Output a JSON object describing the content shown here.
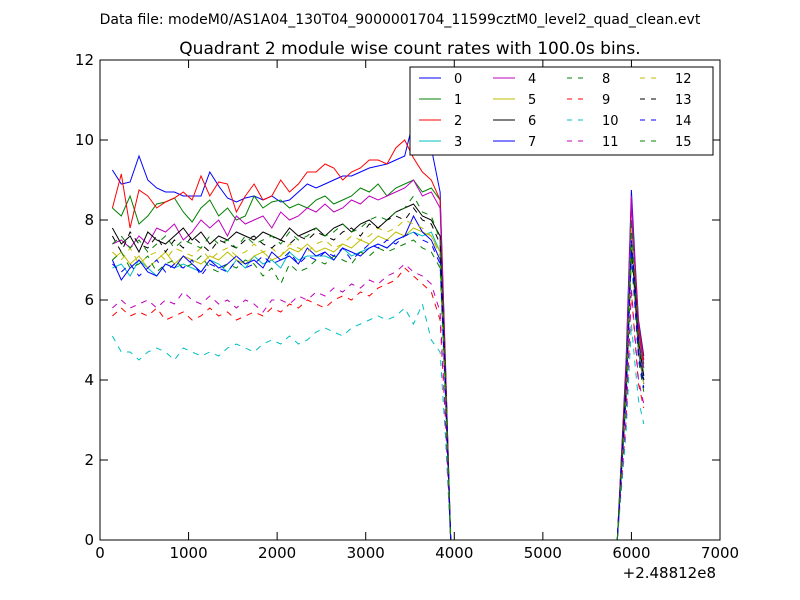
{
  "header": {
    "file_line": "Data file: modeM0/AS1A04_130T04_9000001704_11599cztM0_level2_quad_clean.evt"
  },
  "chart_data": {
    "type": "line",
    "title": "Quadrant 2 module wise count rates with 100.0s bins.",
    "x_offset_label": "+2.48812e8",
    "xlim": [
      0,
      7000
    ],
    "ylim": [
      0,
      12
    ],
    "x_ticks": [
      0,
      1000,
      2000,
      3000,
      4000,
      5000,
      6000,
      7000
    ],
    "y_ticks": [
      0,
      2,
      4,
      6,
      8,
      10,
      12
    ],
    "x_tick_labels": [
      "0",
      "1000",
      "2000",
      "3000",
      "4000",
      "5000",
      "6000",
      "7000"
    ],
    "y_tick_labels": [
      "0",
      "2",
      "4",
      "6",
      "8",
      "10",
      "12"
    ],
    "grid": false,
    "legend_placement": "top-right",
    "legend_columns": 4,
    "x": [
      140,
      240,
      340,
      440,
      540,
      640,
      740,
      840,
      940,
      1040,
      1140,
      1240,
      1340,
      1440,
      1540,
      1640,
      1740,
      1840,
      1940,
      2040,
      2140,
      2240,
      2340,
      2440,
      2540,
      2640,
      2740,
      2840,
      2940,
      3040,
      3140,
      3240,
      3340,
      3440,
      3540,
      3640,
      3740,
      3840,
      3900,
      3960,
      4040,
      4500,
      5000,
      5500,
      5840,
      5940,
      6000,
      6040,
      6080,
      6140
    ],
    "series": [
      {
        "name": "0",
        "color": "#0000ff",
        "dash": false,
        "values": [
          9.25,
          8.9,
          8.95,
          9.6,
          9.0,
          8.8,
          8.7,
          8.7,
          8.6,
          8.6,
          8.6,
          9.2,
          8.85,
          8.55,
          8.45,
          8.55,
          8.6,
          8.5,
          8.6,
          8.45,
          8.5,
          8.7,
          8.9,
          8.8,
          8.9,
          9.0,
          9.1,
          9.1,
          9.2,
          9.3,
          9.35,
          9.4,
          9.5,
          9.6,
          10.5,
          10.0,
          9.8,
          8.7,
          4.5,
          0.0,
          0.0,
          0.0,
          0.0,
          0.0,
          0.0,
          4.5,
          8.75,
          7.0,
          5.5,
          4.6
        ]
      },
      {
        "name": "1",
        "color": "#008000",
        "dash": false,
        "values": [
          8.3,
          8.1,
          8.6,
          7.9,
          8.1,
          8.4,
          8.45,
          8.55,
          8.2,
          7.95,
          8.3,
          8.5,
          8.1,
          8.3,
          8.0,
          8.1,
          8.6,
          8.3,
          8.45,
          8.5,
          8.3,
          8.4,
          8.3,
          8.5,
          8.6,
          8.4,
          8.5,
          8.6,
          8.8,
          8.7,
          8.9,
          8.6,
          8.8,
          8.9,
          9.0,
          8.7,
          8.8,
          8.5,
          4.3,
          0.0,
          0.0,
          0.0,
          0.0,
          0.0,
          0.0,
          4.2,
          8.0,
          6.8,
          5.3,
          4.4
        ]
      },
      {
        "name": "2",
        "color": "#ff0000",
        "dash": false,
        "values": [
          8.3,
          9.15,
          7.8,
          8.75,
          8.6,
          8.3,
          8.45,
          8.55,
          8.7,
          8.5,
          9.1,
          8.6,
          8.95,
          8.9,
          8.2,
          8.6,
          8.9,
          8.5,
          8.6,
          9.0,
          8.7,
          8.9,
          9.2,
          9.2,
          9.4,
          9.3,
          9.0,
          9.2,
          9.3,
          9.5,
          9.5,
          9.4,
          9.8,
          10.0,
          9.55,
          9.2,
          9.0,
          8.5,
          4.4,
          0.0,
          0.0,
          0.0,
          0.0,
          0.0,
          0.0,
          4.3,
          8.4,
          6.9,
          5.4,
          4.5
        ]
      },
      {
        "name": "3",
        "color": "#00bfbf",
        "dash": false,
        "values": [
          6.8,
          6.9,
          6.6,
          7.0,
          6.8,
          6.6,
          6.9,
          6.8,
          6.9,
          6.8,
          6.7,
          7.0,
          6.9,
          6.7,
          7.0,
          6.8,
          7.1,
          6.9,
          7.0,
          6.8,
          7.2,
          7.0,
          7.1,
          7.1,
          7.1,
          7.0,
          7.3,
          7.1,
          7.2,
          7.3,
          7.4,
          7.3,
          7.5,
          7.6,
          7.7,
          7.6,
          7.7,
          7.2,
          3.9,
          0.0,
          0.0,
          0.0,
          0.0,
          0.0,
          0.0,
          3.8,
          7.7,
          6.2,
          4.8,
          4.0
        ]
      },
      {
        "name": "4",
        "color": "#bf00bf",
        "dash": false,
        "values": [
          7.4,
          7.5,
          7.3,
          7.6,
          7.4,
          7.8,
          7.7,
          7.9,
          7.5,
          7.7,
          8.0,
          7.8,
          8.0,
          7.6,
          8.1,
          7.9,
          8.0,
          8.1,
          7.8,
          8.2,
          8.0,
          8.1,
          8.3,
          8.2,
          8.4,
          8.2,
          8.3,
          8.5,
          8.4,
          8.6,
          8.5,
          8.6,
          8.7,
          8.8,
          9.0,
          8.6,
          8.7,
          8.3,
          4.2,
          0.0,
          0.0,
          0.0,
          0.0,
          0.0,
          0.0,
          4.1,
          8.6,
          6.7,
          5.2,
          4.3
        ]
      },
      {
        "name": "5",
        "color": "#bfbf00",
        "dash": false,
        "values": [
          7.0,
          7.2,
          6.9,
          7.1,
          6.8,
          7.0,
          7.2,
          6.9,
          7.1,
          7.0,
          6.9,
          7.1,
          7.0,
          7.2,
          7.0,
          6.9,
          7.1,
          7.2,
          7.0,
          7.1,
          7.3,
          7.2,
          7.4,
          7.2,
          7.3,
          7.2,
          7.4,
          7.3,
          7.5,
          7.4,
          7.6,
          7.5,
          7.7,
          7.6,
          7.8,
          7.7,
          7.6,
          7.2,
          3.9,
          0.0,
          0.0,
          0.0,
          0.0,
          0.0,
          0.0,
          3.8,
          7.8,
          6.3,
          4.9,
          4.0
        ]
      },
      {
        "name": "6",
        "color": "#000000",
        "dash": false,
        "values": [
          7.8,
          7.4,
          7.6,
          7.2,
          7.7,
          7.5,
          7.4,
          7.6,
          7.8,
          7.5,
          7.7,
          7.4,
          7.6,
          7.5,
          7.7,
          7.6,
          7.5,
          7.7,
          7.6,
          7.5,
          7.8,
          7.6,
          7.7,
          7.8,
          7.6,
          7.8,
          7.9,
          7.7,
          7.9,
          8.0,
          7.8,
          8.0,
          8.2,
          8.3,
          8.4,
          8.1,
          8.0,
          7.6,
          4.0,
          0.0,
          0.0,
          0.0,
          0.0,
          0.0,
          0.0,
          3.9,
          7.4,
          6.4,
          5.0,
          4.1
        ]
      },
      {
        "name": "7",
        "color": "#0000ff",
        "dash": false,
        "values": [
          7.0,
          6.5,
          6.8,
          7.0,
          6.7,
          6.6,
          6.9,
          6.8,
          7.1,
          6.9,
          6.7,
          7.0,
          6.8,
          6.9,
          7.1,
          6.9,
          7.0,
          6.8,
          7.2,
          7.0,
          7.1,
          6.9,
          7.3,
          7.1,
          7.2,
          7.0,
          7.3,
          7.2,
          7.1,
          7.3,
          7.4,
          7.3,
          7.5,
          7.6,
          8.1,
          7.7,
          7.5,
          7.0,
          3.8,
          0.0,
          0.0,
          0.0,
          0.0,
          0.0,
          0.0,
          3.7,
          7.6,
          6.0,
          4.7,
          3.9
        ]
      },
      {
        "name": "8",
        "color": "#008000",
        "dash": true,
        "values": [
          7.0,
          7.2,
          6.8,
          6.9,
          7.1,
          6.7,
          6.9,
          7.0,
          6.8,
          6.9,
          7.1,
          6.8,
          6.7,
          6.9,
          6.8,
          7.0,
          6.9,
          6.6,
          6.8,
          6.4,
          6.9,
          6.7,
          6.8,
          7.0,
          6.9,
          7.1,
          7.0,
          6.9,
          7.2,
          7.1,
          7.3,
          7.2,
          7.3,
          7.4,
          7.5,
          7.3,
          7.2,
          6.8,
          3.6,
          0.0,
          0.0,
          0.0,
          0.0,
          0.0,
          0.0,
          3.5,
          7.0,
          5.8,
          4.5,
          3.7
        ]
      },
      {
        "name": "9",
        "color": "#ff0000",
        "dash": true,
        "values": [
          5.6,
          5.8,
          5.6,
          5.7,
          5.6,
          5.8,
          5.5,
          5.6,
          5.7,
          5.5,
          5.6,
          5.8,
          5.6,
          5.7,
          5.5,
          5.6,
          5.7,
          5.6,
          5.8,
          5.7,
          5.9,
          5.8,
          6.0,
          5.9,
          5.8,
          6.0,
          6.1,
          6.0,
          6.2,
          6.1,
          6.3,
          6.4,
          6.5,
          6.8,
          6.6,
          6.4,
          6.2,
          5.5,
          3.0,
          0.0,
          0.0,
          0.0,
          0.0,
          0.0,
          0.0,
          3.0,
          6.2,
          5.0,
          3.9,
          3.3
        ]
      },
      {
        "name": "10",
        "color": "#00bfbf",
        "dash": true,
        "values": [
          5.1,
          4.7,
          4.7,
          4.5,
          4.7,
          4.8,
          4.7,
          4.5,
          4.8,
          4.7,
          4.6,
          4.7,
          4.6,
          4.8,
          4.9,
          4.8,
          4.7,
          4.9,
          5.0,
          4.9,
          5.1,
          4.9,
          5.0,
          5.2,
          5.3,
          5.2,
          5.1,
          5.3,
          5.4,
          5.5,
          5.6,
          5.5,
          5.6,
          5.8,
          5.4,
          5.9,
          5.0,
          4.7,
          2.6,
          0.0,
          0.0,
          0.0,
          0.0,
          0.0,
          0.0,
          2.7,
          5.4,
          4.4,
          3.5,
          2.9
        ]
      },
      {
        "name": "11",
        "color": "#bf00bf",
        "dash": true,
        "values": [
          5.8,
          6.0,
          5.8,
          5.9,
          6.0,
          5.8,
          6.0,
          5.9,
          6.2,
          6.0,
          5.9,
          6.1,
          5.9,
          6.0,
          5.8,
          6.0,
          5.9,
          5.7,
          6.0,
          6.0,
          5.9,
          6.1,
          6.0,
          6.2,
          6.1,
          6.3,
          6.2,
          6.4,
          6.3,
          6.5,
          6.4,
          6.6,
          6.7,
          6.9,
          6.7,
          6.6,
          6.4,
          5.7,
          3.1,
          0.0,
          0.0,
          0.0,
          0.0,
          0.0,
          0.0,
          3.1,
          6.3,
          5.1,
          4.0,
          3.4
        ]
      },
      {
        "name": "12",
        "color": "#bfbf00",
        "dash": true,
        "values": [
          7.2,
          7.0,
          7.3,
          6.9,
          7.1,
          7.2,
          7.0,
          7.3,
          7.2,
          7.1,
          7.3,
          7.0,
          7.2,
          7.3,
          7.1,
          7.2,
          7.4,
          7.2,
          7.3,
          7.1,
          7.4,
          7.3,
          7.2,
          7.4,
          7.5,
          7.3,
          7.4,
          7.6,
          7.5,
          7.6,
          7.8,
          7.7,
          7.8,
          8.0,
          7.9,
          7.8,
          7.6,
          7.1,
          3.8,
          0.0,
          0.0,
          0.0,
          0.0,
          0.0,
          0.0,
          3.7,
          7.6,
          6.1,
          4.8,
          3.9
        ]
      },
      {
        "name": "13",
        "color": "#000000",
        "dash": true,
        "values": [
          7.6,
          7.2,
          7.7,
          7.4,
          7.3,
          7.6,
          7.2,
          7.5,
          7.3,
          7.6,
          7.4,
          7.2,
          7.5,
          7.4,
          7.3,
          7.5,
          7.6,
          7.4,
          7.3,
          7.5,
          7.4,
          7.6,
          7.5,
          7.7,
          7.6,
          7.5,
          7.7,
          7.8,
          7.6,
          7.9,
          7.8,
          8.0,
          8.1,
          8.0,
          8.3,
          8.0,
          7.9,
          7.4,
          3.9,
          0.0,
          0.0,
          0.0,
          0.0,
          0.0,
          0.0,
          3.8,
          7.2,
          6.2,
          4.9,
          4.0
        ]
      },
      {
        "name": "14",
        "color": "#0000ff",
        "dash": true,
        "values": [
          6.9,
          6.7,
          6.9,
          6.6,
          6.8,
          7.0,
          6.7,
          6.9,
          6.8,
          7.0,
          6.6,
          6.9,
          6.8,
          6.7,
          7.0,
          6.8,
          6.9,
          7.1,
          6.9,
          7.0,
          7.2,
          6.9,
          7.1,
          7.0,
          7.2,
          7.1,
          7.3,
          7.0,
          7.2,
          7.4,
          7.3,
          7.5,
          7.4,
          7.6,
          7.7,
          7.5,
          7.4,
          6.9,
          3.7,
          0.0,
          0.0,
          0.0,
          0.0,
          0.0,
          0.0,
          3.6,
          7.4,
          5.9,
          4.6,
          3.8
        ]
      },
      {
        "name": "15",
        "color": "#008000",
        "dash": true,
        "values": [
          7.4,
          7.6,
          7.3,
          7.5,
          7.2,
          7.4,
          7.6,
          7.3,
          7.5,
          7.4,
          7.3,
          7.6,
          7.4,
          7.5,
          7.3,
          7.6,
          7.4,
          7.5,
          7.6,
          7.4,
          7.7,
          7.5,
          7.6,
          7.8,
          7.6,
          7.7,
          7.9,
          7.7,
          7.8,
          8.0,
          8.1,
          8.0,
          8.2,
          8.3,
          8.6,
          8.2,
          8.1,
          7.5,
          4.0,
          0.0,
          0.0,
          0.0,
          0.0,
          0.0,
          0.0,
          3.9,
          7.9,
          6.4,
          5.0,
          4.1
        ]
      }
    ]
  }
}
